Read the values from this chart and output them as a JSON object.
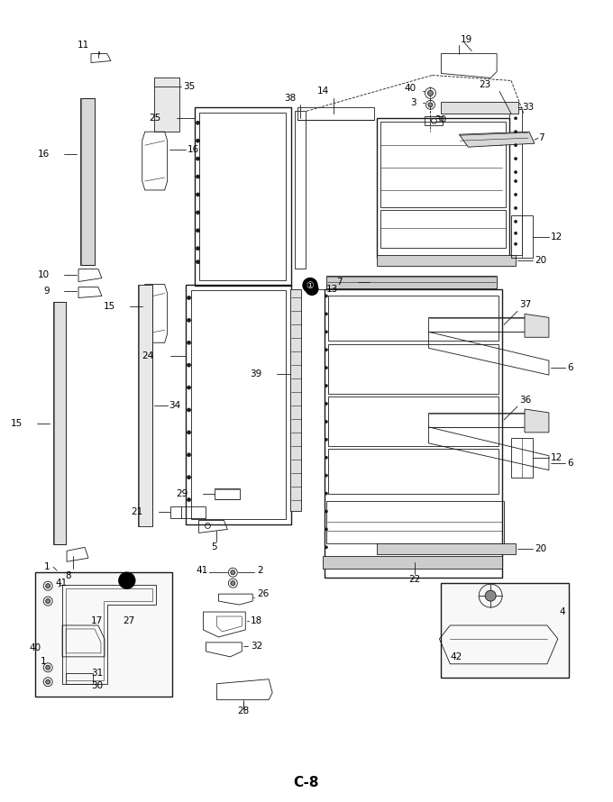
{
  "title": "C-8",
  "bg_color": "#ffffff",
  "lc": "#1a1a1a",
  "fig_w": 6.8,
  "fig_h": 8.9,
  "dpi": 100
}
